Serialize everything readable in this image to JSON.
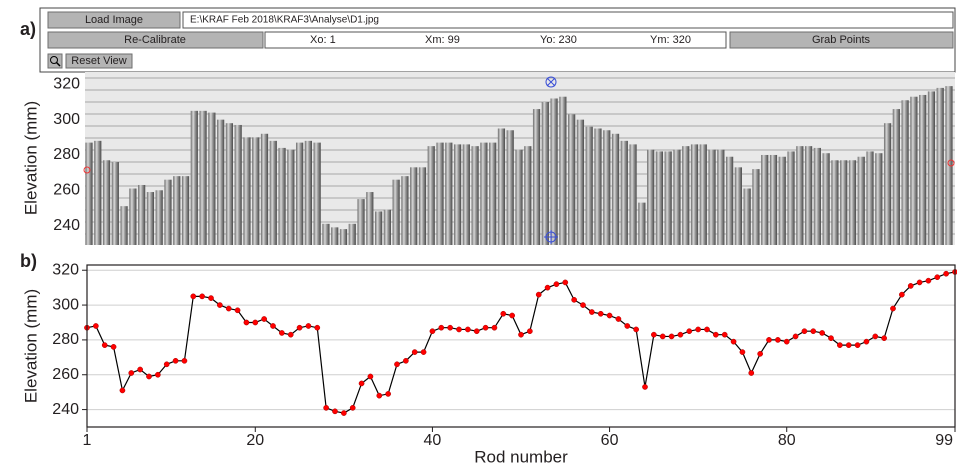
{
  "ui": {
    "load_button": "Load Image",
    "file_path": "E:\\KRAF Feb 2018\\KRAF3\\Analyse\\D1.jpg",
    "recalibrate_button": "Re-Calibrate",
    "xo": "Xo: 1",
    "xm": "Xm: 99",
    "yo": "Yo: 230",
    "ym": "Ym: 320",
    "grab_button": "Grab Points",
    "reset_button": "Reset View"
  },
  "chart_data": [
    {
      "type": "bar",
      "label": "a)",
      "ylabel": "Elevation (mm)",
      "ylim": [
        229,
        327
      ],
      "yticks": [
        240,
        260,
        280,
        300,
        320
      ]
    },
    {
      "type": "line",
      "label": "b)",
      "xlabel": "Rod number",
      "ylabel": "Elevation (mm)",
      "x": [
        1,
        2,
        3,
        4,
        5,
        6,
        7,
        8,
        9,
        10,
        11,
        12,
        13,
        14,
        15,
        16,
        17,
        18,
        19,
        20,
        21,
        22,
        23,
        24,
        25,
        26,
        27,
        28,
        29,
        30,
        31,
        32,
        33,
        34,
        35,
        36,
        37,
        38,
        39,
        40,
        41,
        42,
        43,
        44,
        45,
        46,
        47,
        48,
        49,
        50,
        51,
        52,
        53,
        54,
        55,
        56,
        57,
        58,
        59,
        60,
        61,
        62,
        63,
        64,
        65,
        66,
        67,
        68,
        69,
        70,
        71,
        72,
        73,
        74,
        75,
        76,
        77,
        78,
        79,
        80,
        81,
        82,
        83,
        84,
        85,
        86,
        87,
        88,
        89,
        90,
        91,
        92,
        93,
        94,
        95,
        96,
        97,
        98,
        99
      ],
      "series": [
        {
          "color": "#000000",
          "marker_color": "#ff0000",
          "values": [
            287,
            288,
            277,
            276,
            251,
            261,
            263,
            259,
            260,
            266,
            268,
            268,
            305,
            305,
            304,
            300,
            298,
            297,
            290,
            290,
            292,
            288,
            284,
            283,
            287,
            288,
            287,
            241,
            239,
            238,
            241,
            255,
            259,
            248,
            249,
            266,
            268,
            273,
            273,
            285,
            287,
            287,
            286,
            286,
            285,
            287,
            287,
            295,
            294,
            283,
            285,
            306,
            310,
            312,
            313,
            303,
            300,
            296,
            295,
            294,
            292,
            288,
            286,
            253,
            283,
            282,
            282,
            283,
            285,
            286,
            286,
            283,
            283,
            279,
            273,
            261,
            272,
            280,
            280,
            279,
            282,
            285,
            285,
            284,
            281,
            277,
            277,
            277,
            279,
            282,
            281,
            298,
            306,
            311,
            313,
            314,
            316,
            318,
            319
          ]
        }
      ],
      "xlim": [
        1,
        99
      ],
      "xticks": [
        1,
        20,
        40,
        60,
        80,
        99
      ],
      "ylim": [
        230,
        323
      ],
      "yticks": [
        240,
        260,
        280,
        300,
        320
      ],
      "grid": true
    }
  ]
}
